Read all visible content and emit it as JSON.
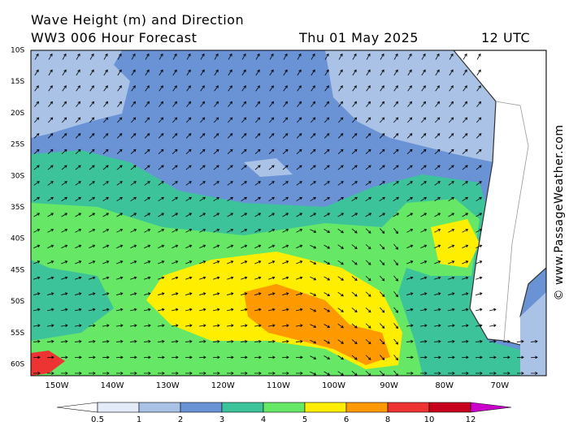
{
  "header": {
    "title": "Wave Height (m) and Direction",
    "model": "WW3 006 Hour Forecast",
    "date": "Thu 01 May 2025",
    "time": "12 UTC"
  },
  "map": {
    "lat_labels": [
      "10S",
      "15S",
      "20S",
      "25S",
      "30S",
      "35S",
      "40S",
      "45S",
      "50S",
      "55S",
      "60S"
    ],
    "lon_labels": [
      "150W",
      "140W",
      "130W",
      "120W",
      "110W",
      "100W",
      "90W",
      "80W",
      "70W"
    ]
  },
  "legend": {
    "labels": [
      0.5,
      1,
      2,
      3,
      4,
      5,
      6,
      8,
      10,
      12
    ],
    "colors": [
      "#ffffff",
      "#e3ebf8",
      "#a9c2e6",
      "#6a93d6",
      "#3cc39a",
      "#66e866",
      "#ffee00",
      "#ff9900",
      "#ee3333",
      "#c8001e",
      "#cc00cc"
    ]
  },
  "watermark": "© www.PassageWeather.com"
}
